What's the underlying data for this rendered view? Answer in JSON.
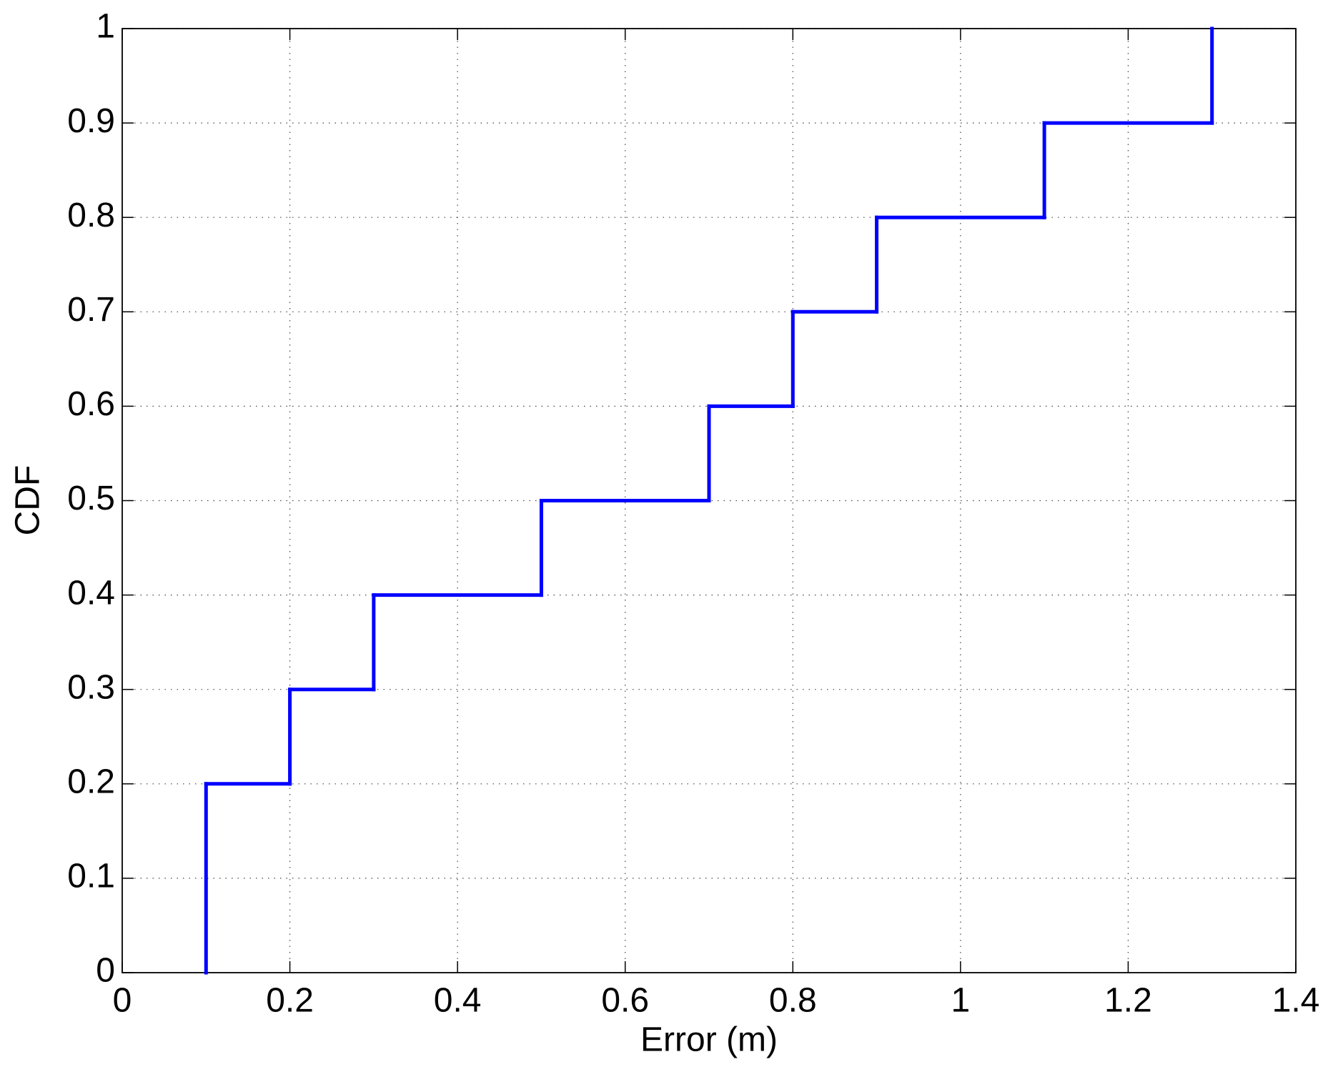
{
  "chart_data": {
    "type": "step",
    "xlabel": "Error (m)",
    "ylabel": "CDF",
    "x": [
      0.1,
      0.1,
      0.2,
      0.3,
      0.5,
      0.7,
      0.8,
      0.9,
      1.1,
      1.3
    ],
    "values": [
      0,
      0.2,
      0.3,
      0.4,
      0.5,
      0.6,
      0.7,
      0.8,
      0.9,
      1
    ],
    "color": "#0000ff",
    "xlim": [
      0,
      1.4
    ],
    "xticks": [
      0,
      0.2,
      0.4,
      0.6,
      0.8,
      1,
      1.2,
      1.4
    ],
    "ylim": [
      0,
      1
    ],
    "yticks": [
      0,
      0.1,
      0.2,
      0.3,
      0.4,
      0.5,
      0.6,
      0.7,
      0.8,
      0.9,
      1
    ],
    "grid": true
  }
}
